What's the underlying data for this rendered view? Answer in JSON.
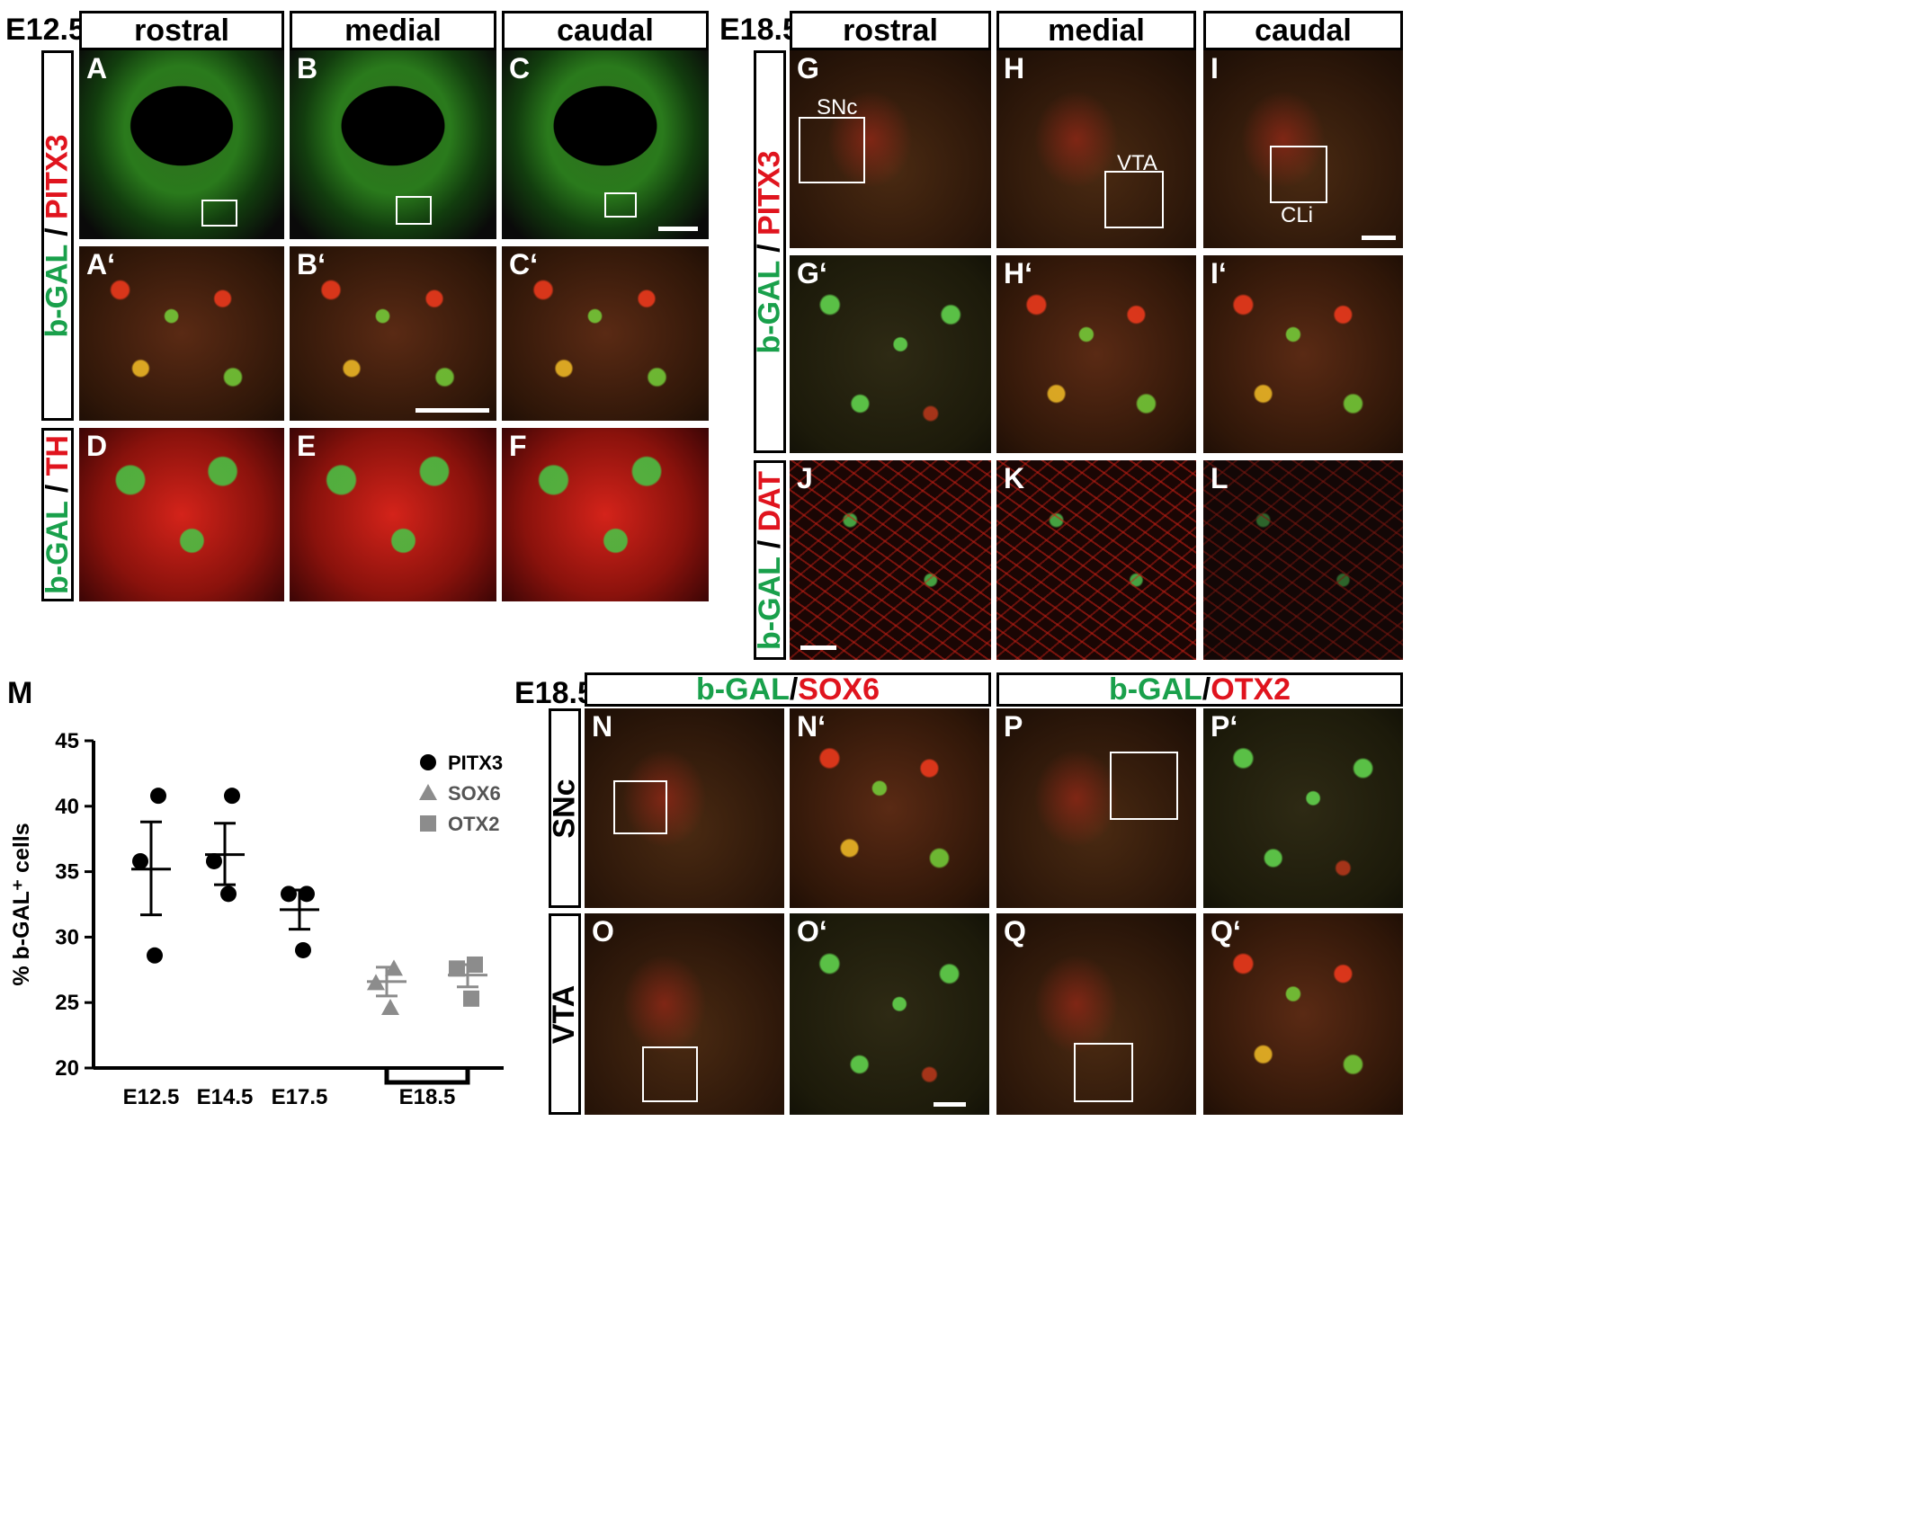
{
  "left_block": {
    "stage": "E12.5",
    "columns": [
      "rostral",
      "medial",
      "caudal"
    ],
    "row_labels": [
      {
        "parts": [
          {
            "text": "b-GAL",
            "color": "#19a04b"
          },
          {
            "text": " / ",
            "color": "#000000"
          },
          {
            "text": "PITX3",
            "color": "#e0141e"
          }
        ]
      },
      {
        "parts": [
          {
            "text": "b-GAL",
            "color": "#19a04b"
          },
          {
            "text": " / ",
            "color": "#000000"
          },
          {
            "text": "TH",
            "color": "#e0141e"
          }
        ]
      }
    ],
    "panel_letters": [
      "A",
      "B",
      "C",
      "A‘",
      "B‘",
      "C‘",
      "D",
      "E",
      "F"
    ]
  },
  "right_block": {
    "stage": "E18.5",
    "columns": [
      "rostral",
      "medial",
      "caudal"
    ],
    "row_labels": [
      {
        "parts": [
          {
            "text": "b-GAL",
            "color": "#19a04b"
          },
          {
            "text": " / ",
            "color": "#000000"
          },
          {
            "text": "PITX3",
            "color": "#e0141e"
          }
        ]
      },
      {
        "parts": [
          {
            "text": "b-GAL",
            "color": "#19a04b"
          },
          {
            "text": " / ",
            "color": "#000000"
          },
          {
            "text": "DAT",
            "color": "#e0141e"
          }
        ]
      }
    ],
    "panel_letters": [
      "G",
      "H",
      "I",
      "G‘",
      "H‘",
      "I‘",
      "J",
      "K",
      "L"
    ],
    "annotations": {
      "snc": "SNc",
      "vta": "VTA",
      "cli": "CLi"
    }
  },
  "bottom_block": {
    "stage": "E18.5",
    "group_headers": [
      {
        "parts": [
          {
            "text": "b-GAL",
            "color": "#19a04b"
          },
          {
            "text": " / ",
            "color": "#000000"
          },
          {
            "text": "SOX6",
            "color": "#e0141e"
          }
        ]
      },
      {
        "parts": [
          {
            "text": "b-GAL",
            "color": "#19a04b"
          },
          {
            "text": " / ",
            "color": "#000000"
          },
          {
            "text": "OTX2",
            "color": "#e0141e"
          }
        ]
      }
    ],
    "row_labels": [
      "SNc",
      "VTA"
    ],
    "panel_letters": [
      "N",
      "N‘",
      "P",
      "P‘",
      "O",
      "O‘",
      "Q",
      "Q‘"
    ]
  },
  "chart_panel_letter": "M",
  "chart_data": {
    "type": "scatter",
    "ylabel": "% b-GAL⁺ cells",
    "ylim": [
      20,
      45
    ],
    "yticks": [
      "20",
      "25",
      "30",
      "35",
      "40",
      "45"
    ],
    "xlabels": [
      "E12.5",
      "E14.5",
      "E17.5",
      "E18.5"
    ],
    "legend_position": "top-right",
    "series": [
      {
        "name": "PITX3",
        "marker": "circle",
        "color": "#000000",
        "groups": [
          {
            "x": "E12.5",
            "points": [
              40.8,
              35.8,
              28.6
            ],
            "mean": 35.2,
            "sem_low": 31.7,
            "sem_high": 38.8
          },
          {
            "x": "E14.5",
            "points": [
              40.8,
              35.8,
              33.3
            ],
            "mean": 36.3,
            "sem_low": 34.0,
            "sem_high": 38.7
          },
          {
            "x": "E17.5",
            "points": [
              33.3,
              33.3,
              29.0
            ],
            "mean": 32.1,
            "sem_low": 30.6,
            "sem_high": 33.6
          }
        ]
      },
      {
        "name": "SOX6",
        "marker": "triangle",
        "color": "#8c8c8c",
        "groups": [
          {
            "x": "E18.5",
            "points": [
              27.6,
              26.5,
              24.6
            ],
            "mean": 26.6,
            "sem_low": 25.5,
            "sem_high": 27.7
          }
        ]
      },
      {
        "name": "OTX2",
        "marker": "square",
        "color": "#8c8c8c",
        "groups": [
          {
            "x": "E18.5",
            "points": [
              27.9,
              27.6,
              25.3
            ],
            "mean": 27.1,
            "sem_low": 26.2,
            "sem_high": 27.9
          }
        ]
      }
    ]
  }
}
